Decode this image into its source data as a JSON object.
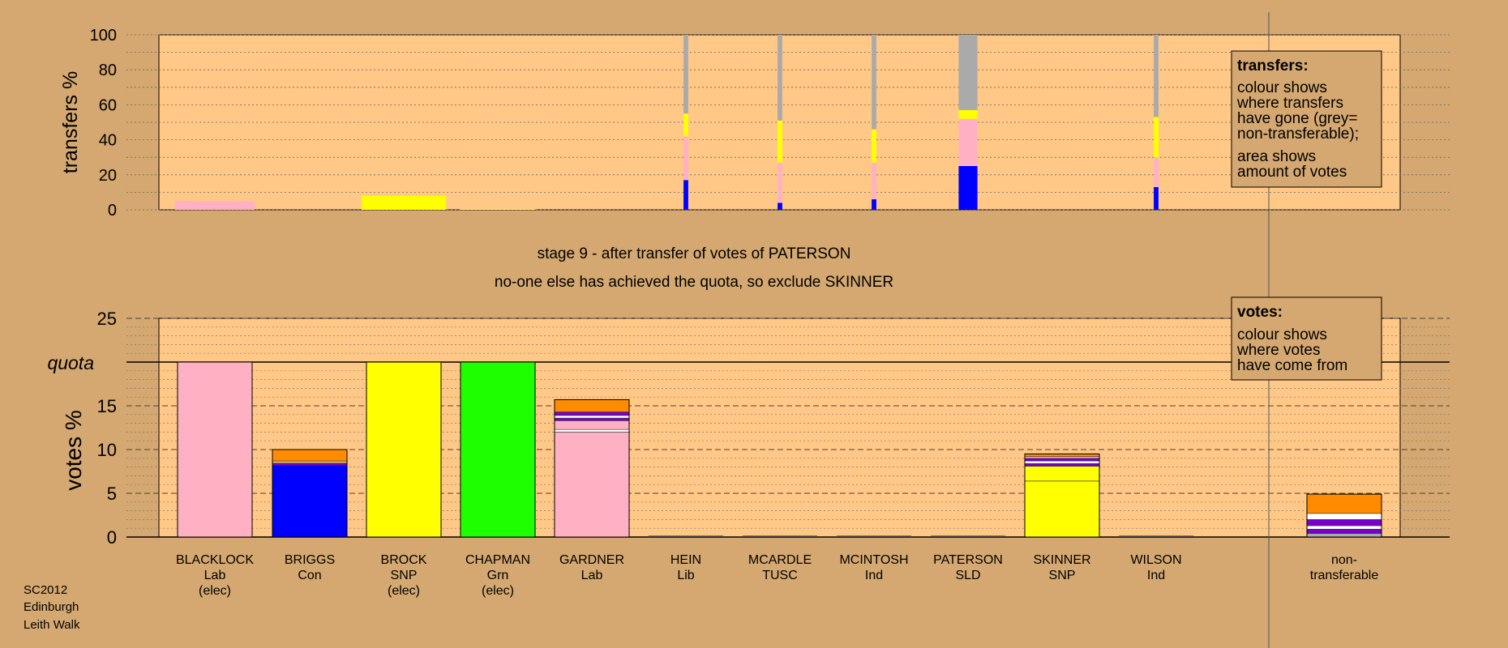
{
  "colors": {
    "background": "#d4a870",
    "plot_bg": "#ffc887",
    "legend_bg": "#d4a870",
    "Lab": "#ffb1c3",
    "Con": "#0000ff",
    "SNP": "#ffff00",
    "Grn": "#1eff00",
    "Lib": "#ff8c00",
    "TUSC": "#7a00cc",
    "Ind": "#ffffff",
    "SLD": "#ffb347",
    "nontransferable": "#aaaaaa"
  },
  "chart_data": [
    {
      "type": "bar",
      "stacked": true,
      "title": "",
      "ylabel": "transfers %",
      "ylim": [
        0,
        100
      ],
      "yticks": [
        0,
        20,
        40,
        60,
        80,
        100
      ],
      "grid": true,
      "categories": [
        "BLACKLOCK",
        "BRIGGS",
        "BROCK",
        "CHAPMAN",
        "GARDNER",
        "HEIN",
        "MCARDLE",
        "MCINTOSH",
        "PATERSON",
        "SKINNER",
        "WILSON"
      ],
      "note": "bar width shows amount of votes transferred; colour shows destination",
      "bars": [
        {
          "category": "BLACKLOCK",
          "width": 0.85,
          "segments": [
            {
              "party": "Lab",
              "value": 5
            }
          ]
        },
        {
          "category": "BRIGGS",
          "width": 0,
          "segments": []
        },
        {
          "category": "BROCK",
          "width": 0.9,
          "segments": [
            {
              "party": "SNP",
              "value": 8
            }
          ]
        },
        {
          "category": "CHAPMAN",
          "width": 0.8,
          "segments": [
            {
              "party": "SNP",
              "value": 0.5
            }
          ]
        },
        {
          "category": "GARDNER",
          "width": 0,
          "segments": []
        },
        {
          "category": "HEIN",
          "width": 0.05,
          "segments": [
            {
              "party": "Con",
              "value": 17
            },
            {
              "party": "Lab",
              "value": 25
            },
            {
              "party": "SNP",
              "value": 13
            },
            {
              "party": "nontransferable",
              "value": 45
            }
          ]
        },
        {
          "category": "MCARDLE",
          "width": 0.05,
          "segments": [
            {
              "party": "Con",
              "value": 4
            },
            {
              "party": "Lab",
              "value": 23
            },
            {
              "party": "SNP",
              "value": 24
            },
            {
              "party": "nontransferable",
              "value": 49
            }
          ]
        },
        {
          "category": "MCINTOSH",
          "width": 0.05,
          "segments": [
            {
              "party": "Con",
              "value": 6
            },
            {
              "party": "Lab",
              "value": 21
            },
            {
              "party": "SNP",
              "value": 19
            },
            {
              "party": "nontransferable",
              "value": 54
            }
          ]
        },
        {
          "category": "PATERSON",
          "width": 0.2,
          "segments": [
            {
              "party": "Con",
              "value": 25
            },
            {
              "party": "Lab",
              "value": 27
            },
            {
              "party": "SNP",
              "value": 5
            },
            {
              "party": "nontransferable",
              "value": 43
            }
          ]
        },
        {
          "category": "SKINNER",
          "width": 0,
          "segments": []
        },
        {
          "category": "WILSON",
          "width": 0.05,
          "segments": [
            {
              "party": "Con",
              "value": 13
            },
            {
              "party": "Lab",
              "value": 17
            },
            {
              "party": "SNP",
              "value": 23
            },
            {
              "party": "nontransferable",
              "value": 47
            }
          ]
        }
      ]
    },
    {
      "type": "bar",
      "stacked": true,
      "title": "",
      "ylabel": "votes %",
      "ylim": [
        0,
        25
      ],
      "yticks": [
        0,
        5,
        10,
        15,
        20,
        25
      ],
      "quota": 20,
      "grid": true,
      "categories": [
        "BLACKLOCK",
        "BRIGGS",
        "BROCK",
        "CHAPMAN",
        "GARDNER",
        "HEIN",
        "MCARDLE",
        "MCINTOSH",
        "PATERSON",
        "SKINNER",
        "WILSON",
        "non-transferable"
      ],
      "bars": [
        {
          "category": "BLACKLOCK",
          "segments": [
            {
              "party": "Lab",
              "value": 20
            }
          ]
        },
        {
          "category": "BRIGGS",
          "segments": [
            {
              "party": "Con",
              "value": 8.2
            },
            {
              "party": "TUSC",
              "value": 0.2
            },
            {
              "party": "SNP",
              "value": 0.1
            },
            {
              "party": "Lab",
              "value": 0.2
            },
            {
              "party": "Lib",
              "value": 1.3
            }
          ]
        },
        {
          "category": "BROCK",
          "segments": [
            {
              "party": "SNP",
              "value": 20
            }
          ]
        },
        {
          "category": "CHAPMAN",
          "segments": [
            {
              "party": "Grn",
              "value": 20
            }
          ]
        },
        {
          "category": "GARDNER",
          "segments": [
            {
              "party": "Lab",
              "value": 12
            },
            {
              "party": "Ind",
              "value": 0.3
            },
            {
              "party": "Lab",
              "value": 1
            },
            {
              "party": "TUSC",
              "value": 0.3
            },
            {
              "party": "Ind",
              "value": 0.3
            },
            {
              "party": "TUSC",
              "value": 0.4
            },
            {
              "party": "Lib",
              "value": 1.4
            }
          ]
        },
        {
          "category": "HEIN",
          "segments": []
        },
        {
          "category": "MCARDLE",
          "segments": []
        },
        {
          "category": "MCINTOSH",
          "segments": []
        },
        {
          "category": "PATERSON",
          "segments": []
        },
        {
          "category": "SKINNER",
          "segments": [
            {
              "party": "SNP",
              "value": 6.4
            },
            {
              "party": "SNP",
              "value": 1.7
            },
            {
              "party": "TUSC",
              "value": 0.3
            },
            {
              "party": "Ind",
              "value": 0.3
            },
            {
              "party": "TUSC",
              "value": 0.3
            },
            {
              "party": "Lab",
              "value": 0.2
            },
            {
              "party": "Lib",
              "value": 0.3
            }
          ]
        },
        {
          "category": "WILSON",
          "segments": []
        },
        {
          "category": "non-transferable",
          "segments": [
            {
              "party": "nontransferable",
              "value": 0.4
            },
            {
              "party": "TUSC",
              "value": 0.5
            },
            {
              "party": "Ind",
              "value": 0.4
            },
            {
              "party": "TUSC",
              "value": 0.7
            },
            {
              "party": "Ind",
              "value": 0.7
            },
            {
              "party": "Lib",
              "value": 2.2
            }
          ]
        }
      ]
    }
  ],
  "candidates": [
    {
      "name": "BLACKLOCK",
      "party": "Lab",
      "status": "(elec)"
    },
    {
      "name": "BRIGGS",
      "party": "Con",
      "status": ""
    },
    {
      "name": "BROCK",
      "party": "SNP",
      "status": "(elec)"
    },
    {
      "name": "CHAPMAN",
      "party": "Grn",
      "status": "(elec)"
    },
    {
      "name": "GARDNER",
      "party": "Lab",
      "status": ""
    },
    {
      "name": "HEIN",
      "party": "Lib",
      "status": ""
    },
    {
      "name": "MCARDLE",
      "party": "TUSC",
      "status": ""
    },
    {
      "name": "MCINTOSH",
      "party": "Ind",
      "status": ""
    },
    {
      "name": "PATERSON",
      "party": "SLD",
      "status": ""
    },
    {
      "name": "SKINNER",
      "party": "SNP",
      "status": ""
    },
    {
      "name": "WILSON",
      "party": "Ind",
      "status": ""
    }
  ],
  "nontransferable_label": [
    "non-",
    "transferable"
  ],
  "stage_text": "stage 9 - after transfer of votes of PATERSON",
  "exclude_text": "no-one else has achieved the quota, so exclude SKINNER",
  "quota_label": "quota",
  "transfers_legend": {
    "title": "transfers:",
    "lines1": [
      "colour shows",
      "where transfers",
      "have gone (grey=",
      "non-transferable);"
    ],
    "lines2": [
      "area shows",
      "amount of votes"
    ]
  },
  "votes_legend": {
    "title": "votes:",
    "lines": [
      "colour shows",
      "where votes",
      "have come from"
    ]
  },
  "footer": [
    "SC2012",
    "Edinburgh",
    "Leith Walk"
  ]
}
